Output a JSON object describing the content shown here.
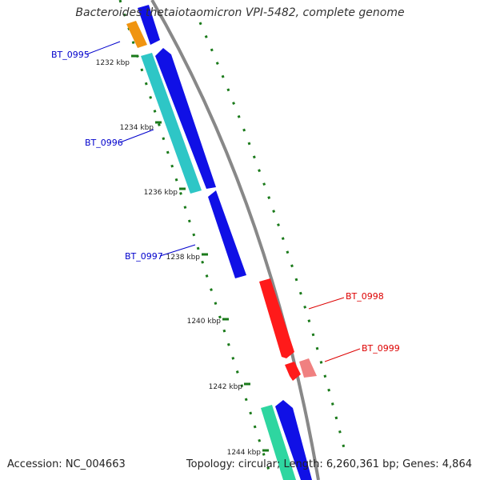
{
  "title": "Bacteroides thetaiotaomicron VPI-5482, complete genome",
  "footer": {
    "accession": "Accession: NC_004663",
    "info": "Topology: circular; Length: 6,260,361 bp; Genes: 4,864"
  },
  "scale_ticks": [
    "1232 kbp",
    "1234 kbp",
    "1236 kbp",
    "1238 kbp",
    "1240 kbp",
    "1242 kbp",
    "1244 kbp"
  ],
  "gene_labels": [
    {
      "name": "BT_0995",
      "color": "#0000cc"
    },
    {
      "name": "BT_0996",
      "color": "#0000cc"
    },
    {
      "name": "BT_0997",
      "color": "#0000cc"
    },
    {
      "name": "BT_0998",
      "color": "#dd0000"
    },
    {
      "name": "BT_0999",
      "color": "#dd0000"
    }
  ],
  "colors": {
    "backbone": "#888888",
    "ticks": "#1a7a1a",
    "cyan": "#2ec6c6",
    "blue": "#1010e6",
    "orange": "#f09410",
    "red": "#ff1a1a",
    "pink": "#f08080",
    "green": "#2ed6a0"
  }
}
